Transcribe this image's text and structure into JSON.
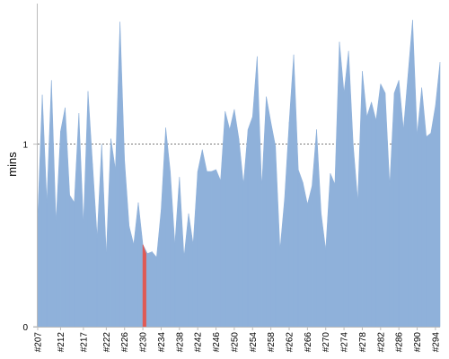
{
  "chart_data": {
    "type": "area",
    "ylabel": "mins",
    "ylim": [
      0,
      1.75
    ],
    "y_ticks": [
      0,
      1
    ],
    "reference_line": 1,
    "x_tick_labels": [
      "#207",
      "#212",
      "#217",
      "#222",
      "#226",
      "#230",
      "#234",
      "#238",
      "#242",
      "#246",
      "#250",
      "#254",
      "#258",
      "#262",
      "#266",
      "#270",
      "#274",
      "#278",
      "#282",
      "#286",
      "#290",
      "#294"
    ],
    "builds": {
      "start": 207,
      "end": 295,
      "values": [
        0.6,
        1.27,
        0.68,
        1.35,
        0.57,
        1.07,
        1.2,
        0.72,
        0.68,
        1.17,
        0.56,
        1.29,
        0.89,
        0.49,
        1.0,
        0.39,
        1.03,
        0.86,
        1.67,
        0.91,
        0.55,
        0.45,
        0.68,
        0.45,
        0.4,
        0.41,
        0.38,
        0.64,
        1.09,
        0.85,
        0.45,
        0.82,
        0.38,
        0.62,
        0.45,
        0.85,
        0.97,
        0.85,
        0.85,
        0.86,
        0.8,
        1.18,
        1.08,
        1.19,
        1.03,
        0.78,
        1.08,
        1.15,
        1.48,
        0.76,
        1.26,
        1.12,
        0.99,
        0.42,
        0.7,
        1.12,
        1.49,
        0.86,
        0.79,
        0.67,
        0.77,
        1.08,
        0.62,
        0.42,
        0.84,
        0.78,
        1.56,
        1.28,
        1.51,
        1.0,
        0.69,
        1.4,
        1.15,
        1.23,
        1.13,
        1.33,
        1.28,
        0.77,
        1.28,
        1.35,
        1.08,
        1.38,
        1.68,
        1.05,
        1.31,
        1.04,
        1.06,
        1.21,
        1.45
      ]
    },
    "highlight": {
      "build": 230,
      "color": "#e05a55"
    },
    "colors": {
      "area": "#8fb1da",
      "axis": "#bbbbbb",
      "reference": "#666666"
    }
  }
}
